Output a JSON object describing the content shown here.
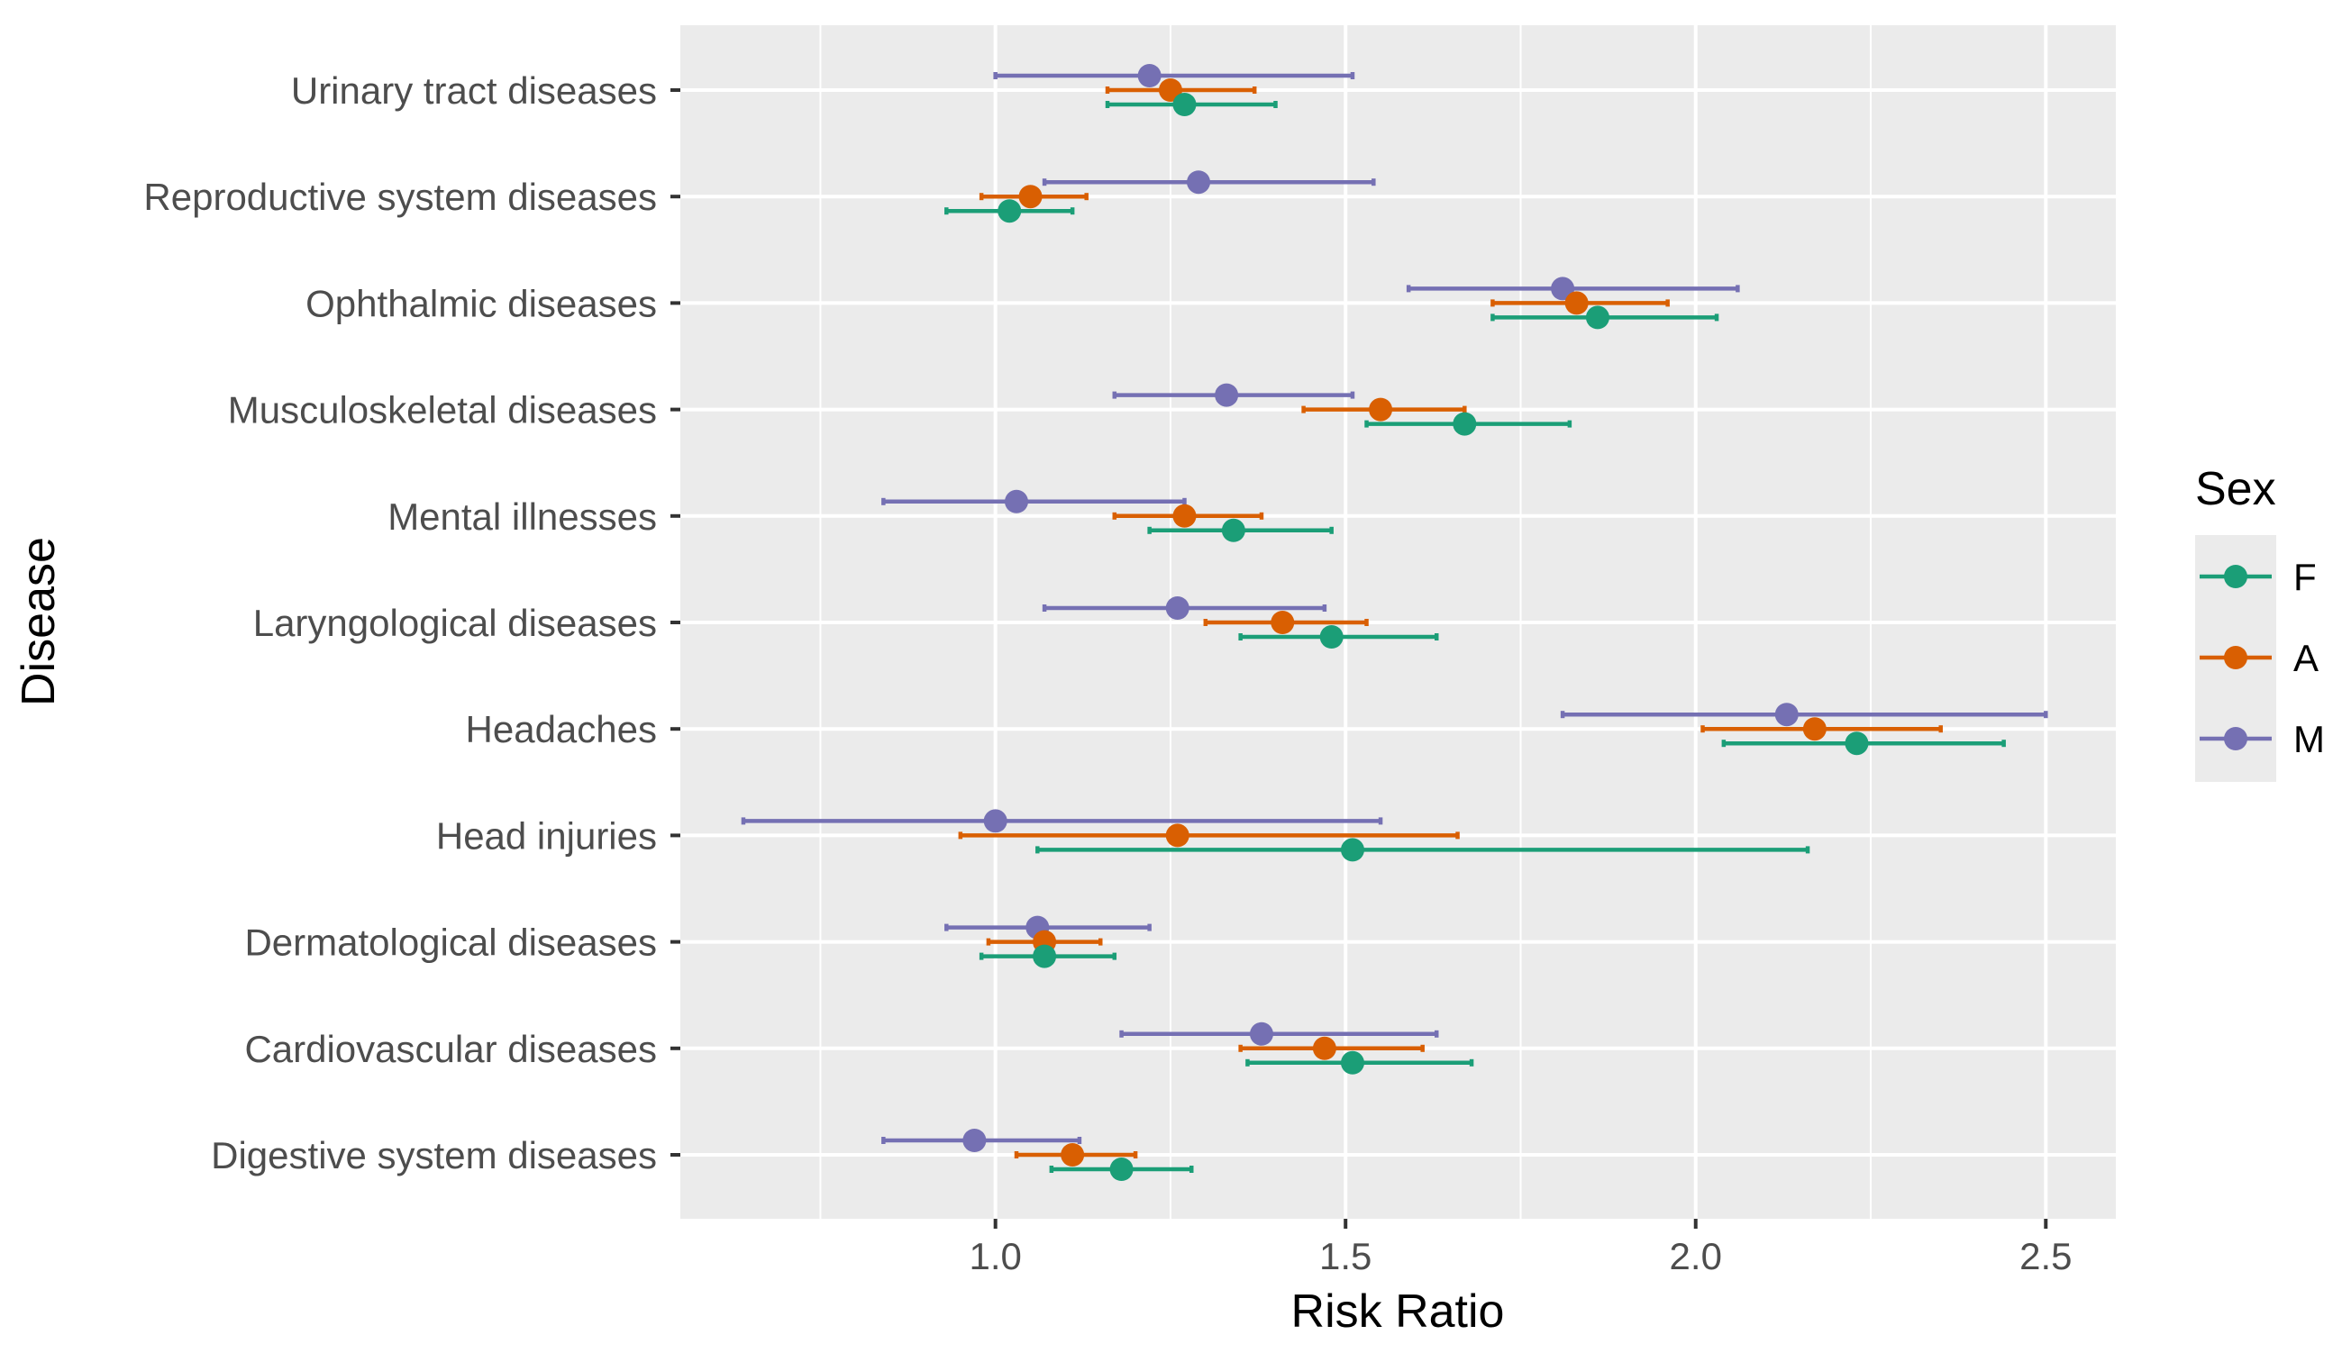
{
  "chart_data": {
    "type": "forest",
    "title": "",
    "xlabel": "Risk Ratio",
    "ylabel": "Disease",
    "xlim": [
      0.55,
      2.6
    ],
    "xticks": [
      1.0,
      1.5,
      2.0,
      2.5
    ],
    "xtick_labels": [
      "1.0",
      "1.5",
      "2.0",
      "2.5"
    ],
    "grid": true,
    "categories": [
      "Urinary tract diseases",
      "Reproductive system diseases",
      "Ophthalmic diseases",
      "Musculoskeletal diseases",
      "Mental illnesses",
      "Laryngological diseases",
      "Headaches",
      "Head injuries",
      "Dermatological diseases",
      "Cardiovascular diseases",
      "Digestive system diseases"
    ],
    "legend": {
      "title": "Sex",
      "position": "right",
      "entries": [
        "F",
        "A",
        "M"
      ]
    },
    "series": [
      {
        "name": "F",
        "color": "#1b9e77",
        "points": [
          {
            "rr": 1.27,
            "lo": 1.16,
            "hi": 1.4
          },
          {
            "rr": 1.02,
            "lo": 0.93,
            "hi": 1.11
          },
          {
            "rr": 1.86,
            "lo": 1.71,
            "hi": 2.03
          },
          {
            "rr": 1.67,
            "lo": 1.53,
            "hi": 1.82
          },
          {
            "rr": 1.34,
            "lo": 1.22,
            "hi": 1.48
          },
          {
            "rr": 1.48,
            "lo": 1.35,
            "hi": 1.63
          },
          {
            "rr": 2.23,
            "lo": 2.04,
            "hi": 2.44
          },
          {
            "rr": 1.51,
            "lo": 1.06,
            "hi": 2.16
          },
          {
            "rr": 1.07,
            "lo": 0.98,
            "hi": 1.17
          },
          {
            "rr": 1.51,
            "lo": 1.36,
            "hi": 1.68
          },
          {
            "rr": 1.18,
            "lo": 1.08,
            "hi": 1.28
          }
        ]
      },
      {
        "name": "A",
        "color": "#d95f02",
        "points": [
          {
            "rr": 1.25,
            "lo": 1.16,
            "hi": 1.37
          },
          {
            "rr": 1.05,
            "lo": 0.98,
            "hi": 1.13
          },
          {
            "rr": 1.83,
            "lo": 1.71,
            "hi": 1.96
          },
          {
            "rr": 1.55,
            "lo": 1.44,
            "hi": 1.67
          },
          {
            "rr": 1.27,
            "lo": 1.17,
            "hi": 1.38
          },
          {
            "rr": 1.41,
            "lo": 1.3,
            "hi": 1.53
          },
          {
            "rr": 2.17,
            "lo": 2.01,
            "hi": 2.35
          },
          {
            "rr": 1.26,
            "lo": 0.95,
            "hi": 1.66
          },
          {
            "rr": 1.07,
            "lo": 0.99,
            "hi": 1.15
          },
          {
            "rr": 1.47,
            "lo": 1.35,
            "hi": 1.61
          },
          {
            "rr": 1.11,
            "lo": 1.03,
            "hi": 1.2
          }
        ]
      },
      {
        "name": "M",
        "color": "#7570b3",
        "points": [
          {
            "rr": 1.22,
            "lo": 1.0,
            "hi": 1.51
          },
          {
            "rr": 1.29,
            "lo": 1.07,
            "hi": 1.54
          },
          {
            "rr": 1.81,
            "lo": 1.59,
            "hi": 2.06
          },
          {
            "rr": 1.33,
            "lo": 1.17,
            "hi": 1.51
          },
          {
            "rr": 1.03,
            "lo": 0.84,
            "hi": 1.27
          },
          {
            "rr": 1.26,
            "lo": 1.07,
            "hi": 1.47
          },
          {
            "rr": 2.13,
            "lo": 1.81,
            "hi": 2.5
          },
          {
            "rr": 1.0,
            "lo": 0.64,
            "hi": 1.55
          },
          {
            "rr": 1.06,
            "lo": 0.93,
            "hi": 1.22
          },
          {
            "rr": 1.38,
            "lo": 1.18,
            "hi": 1.63
          },
          {
            "rr": 0.97,
            "lo": 0.84,
            "hi": 1.12
          }
        ]
      }
    ]
  }
}
